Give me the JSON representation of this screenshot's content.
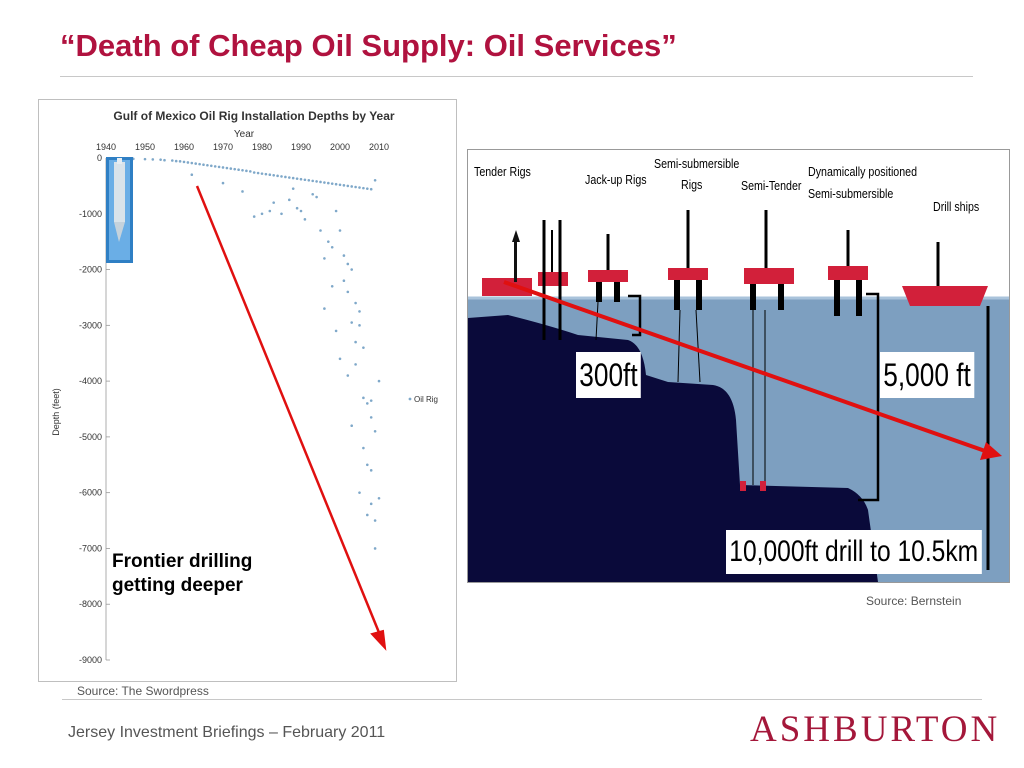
{
  "slide": {
    "title": "“Death of Cheap Oil Supply: Oil Services”",
    "footer": "Jersey Investment Briefings – February 2011",
    "logo": "ASHBURTON",
    "accent_color": "#b0123f"
  },
  "chart_data": [
    {
      "type": "scatter",
      "title": "Gulf of Mexico Oil Rig Installation Depths by Year",
      "xlabel": "Year",
      "ylabel": "Depth (feet)",
      "x_ticks": [
        1940,
        1950,
        1960,
        1970,
        1980,
        1990,
        2000,
        2010
      ],
      "y_ticks": [
        0,
        -1000,
        -2000,
        -3000,
        -4000,
        -5000,
        -6000,
        -7000,
        -8000,
        -9000
      ],
      "xlim": [
        1940,
        2010
      ],
      "ylim": [
        -9000,
        0
      ],
      "legend": "Oil Rig",
      "legend_position": "right",
      "series": [
        {
          "name": "Oil Rig",
          "color": "#7fa8c9",
          "points": [
            [
              1947,
              -15
            ],
            [
              1950,
              -20
            ],
            [
              1952,
              -25
            ],
            [
              1954,
              -30
            ],
            [
              1955,
              -40
            ],
            [
              1957,
              -45
            ],
            [
              1958,
              -55
            ],
            [
              1959,
              -60
            ],
            [
              1960,
              -70
            ],
            [
              1961,
              -80
            ],
            [
              1962,
              -90
            ],
            [
              1963,
              -100
            ],
            [
              1964,
              -110
            ],
            [
              1965,
              -120
            ],
            [
              1966,
              -130
            ],
            [
              1967,
              -140
            ],
            [
              1968,
              -150
            ],
            [
              1969,
              -160
            ],
            [
              1970,
              -170
            ],
            [
              1971,
              -180
            ],
            [
              1972,
              -190
            ],
            [
              1973,
              -200
            ],
            [
              1974,
              -210
            ],
            [
              1975,
              -220
            ],
            [
              1976,
              -230
            ],
            [
              1977,
              -240
            ],
            [
              1978,
              -260
            ],
            [
              1979,
              -270
            ],
            [
              1980,
              -280
            ],
            [
              1981,
              -290
            ],
            [
              1982,
              -300
            ],
            [
              1983,
              -310
            ],
            [
              1984,
              -320
            ],
            [
              1985,
              -330
            ],
            [
              1986,
              -340
            ],
            [
              1987,
              -350
            ],
            [
              1988,
              -360
            ],
            [
              1989,
              -370
            ],
            [
              1990,
              -380
            ],
            [
              1991,
              -390
            ],
            [
              1992,
              -400
            ],
            [
              1993,
              -410
            ],
            [
              1994,
              -420
            ],
            [
              1995,
              -430
            ],
            [
              1996,
              -440
            ],
            [
              1997,
              -450
            ],
            [
              1998,
              -460
            ],
            [
              1999,
              -470
            ],
            [
              2000,
              -480
            ],
            [
              2001,
              -490
            ],
            [
              2002,
              -500
            ],
            [
              2003,
              -510
            ],
            [
              2004,
              -520
            ],
            [
              2005,
              -530
            ],
            [
              2006,
              -540
            ],
            [
              2007,
              -550
            ],
            [
              2008,
              -560
            ],
            [
              2009,
              -400
            ],
            [
              1962,
              -300
            ],
            [
              1970,
              -450
            ],
            [
              1975,
              -600
            ],
            [
              1978,
              -1050
            ],
            [
              1980,
              -1000
            ],
            [
              1982,
              -950
            ],
            [
              1983,
              -800
            ],
            [
              1985,
              -1000
            ],
            [
              1987,
              -750
            ],
            [
              1988,
              -550
            ],
            [
              1989,
              -900
            ],
            [
              1990,
              -950
            ],
            [
              1991,
              -1100
            ],
            [
              1993,
              -650
            ],
            [
              1994,
              -700
            ],
            [
              1995,
              -1300
            ],
            [
              1996,
              -1800
            ],
            [
              1997,
              -1500
            ],
            [
              1998,
              -1600
            ],
            [
              1999,
              -950
            ],
            [
              2000,
              -1300
            ],
            [
              2001,
              -1750
            ],
            [
              2002,
              -1900
            ],
            [
              2003,
              -2000
            ],
            [
              2004,
              -2600
            ],
            [
              2005,
              -2750
            ],
            [
              1998,
              -2300
            ],
            [
              1996,
              -2700
            ],
            [
              1999,
              -3100
            ],
            [
              2000,
              -3600
            ],
            [
              2001,
              -2200
            ],
            [
              2002,
              -2400
            ],
            [
              2003,
              -2950
            ],
            [
              2004,
              -3300
            ],
            [
              2005,
              -3000
            ],
            [
              2006,
              -3400
            ],
            [
              2002,
              -3900
            ],
            [
              2004,
              -3700
            ],
            [
              2006,
              -4300
            ],
            [
              2007,
              -4400
            ],
            [
              2008,
              -4650
            ],
            [
              2008,
              -4350
            ],
            [
              2009,
              -4900
            ],
            [
              2006,
              -5200
            ],
            [
              2007,
              -5500
            ],
            [
              2008,
              -5600
            ],
            [
              2005,
              -6000
            ],
            [
              2007,
              -6400
            ],
            [
              2008,
              -6200
            ],
            [
              2009,
              -6500
            ],
            [
              2010,
              -6100
            ],
            [
              2009,
              -7000
            ],
            [
              2010,
              -4000
            ],
            [
              2003,
              -4800
            ]
          ]
        }
      ],
      "annotation": "Frontier drilling getting deeper",
      "source": "Source: The Swordpress"
    },
    {
      "type": "diagram",
      "rig_types": [
        "Tender Rigs",
        "Jack-up Rigs",
        "Semi-submersible Rigs",
        "Semi-Tender",
        "Dynamically positioned Semi-submersible",
        "Drill ships"
      ],
      "rig_labels": {
        "tender": "Tender Rigs",
        "jackup": "Jack-up Rigs",
        "semi_sub_line1": "Semi-submersible",
        "semi_sub_line2": "Rigs",
        "semi_tender": "Semi-Tender",
        "dp_line1": "Dynamically positioned",
        "dp_line2": "Semi-submersible",
        "drill_ships": "Drill ships"
      },
      "depth_labels": {
        "shallow": "300ft",
        "mid": "5,000 ft",
        "deep": "10,000ft drill to 10.5km"
      },
      "source": "Source: Bernstein"
    }
  ]
}
